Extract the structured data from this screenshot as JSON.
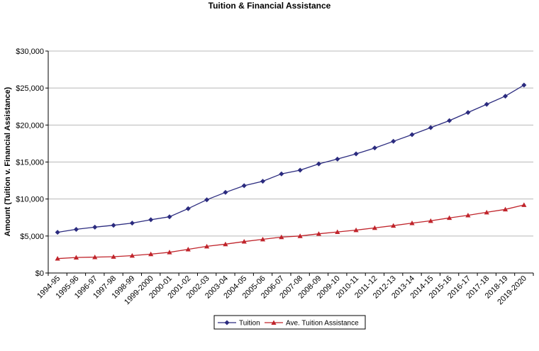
{
  "chart_data": {
    "type": "line",
    "title": "Tuition & Financial Assistance",
    "ylabel": "Amount (Tuition v. Financial Assistance)",
    "xlabel": "",
    "ylim": [
      0,
      30000
    ],
    "yticks": [
      0,
      5000,
      10000,
      15000,
      20000,
      25000,
      30000
    ],
    "ytick_labels": [
      "$0",
      "$5,000",
      "$10,000",
      "$15,000",
      "$20,000",
      "$25,000",
      "$30,000"
    ],
    "grid": "horizontal",
    "legend_position": "bottom",
    "categories": [
      "1994-95",
      "1995-96",
      "1996-97",
      "1997-98",
      "1998-99",
      "1999-2000",
      "2000-01",
      "2001-02",
      "2002-03",
      "2003-04",
      "2004-05",
      "2005-06",
      "2006-07",
      "2007-08",
      "2008-09",
      "2009-10",
      "2010-11",
      "2011-12",
      "2012-13",
      "2013-14",
      "2014-15",
      "2015-16",
      "2016-17",
      "2017-18",
      "2018-19",
      "2019-2020"
    ],
    "series": [
      {
        "name": "Tuition",
        "color": "#2b2b7f",
        "marker": "diamond",
        "values": [
          5500,
          5900,
          6200,
          6450,
          6750,
          7200,
          7600,
          8700,
          9900,
          10900,
          11800,
          12400,
          13400,
          13900,
          14750,
          15400,
          16100,
          16900,
          17800,
          18700,
          19650,
          20600,
          21700,
          22800,
          23900,
          25400
        ]
      },
      {
        "name": "Ave. Tuition Assistance",
        "color": "#c0242b",
        "marker": "triangle",
        "values": [
          1950,
          2100,
          2150,
          2200,
          2350,
          2550,
          2800,
          3200,
          3600,
          3900,
          4250,
          4550,
          4850,
          5000,
          5300,
          5550,
          5800,
          6100,
          6400,
          6750,
          7050,
          7450,
          7800,
          8200,
          8600,
          9200
        ]
      }
    ]
  }
}
